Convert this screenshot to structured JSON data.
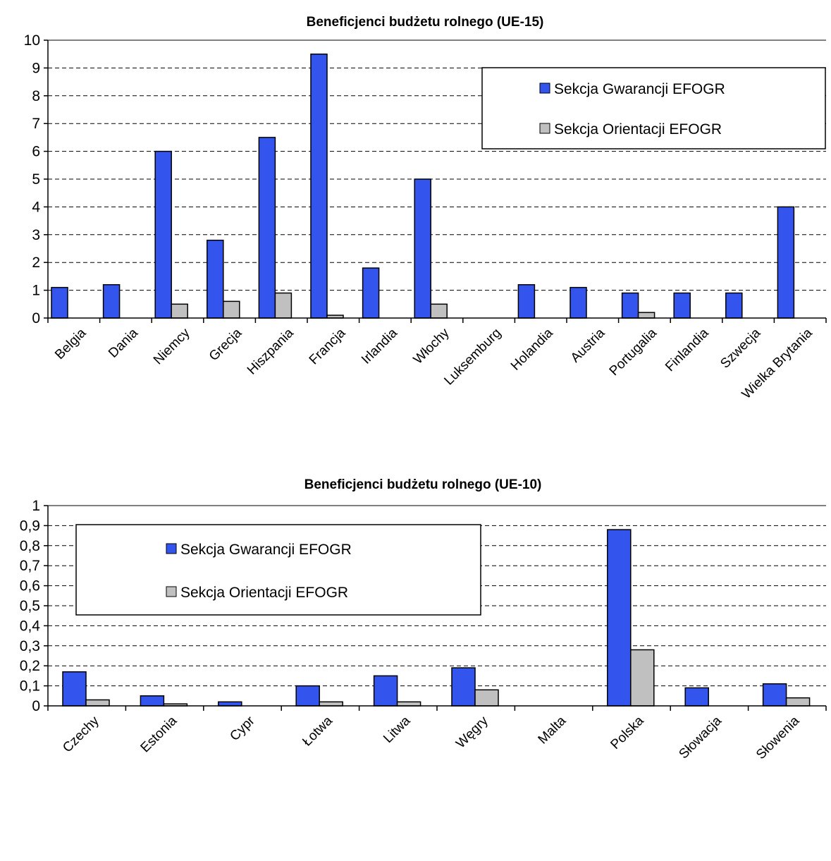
{
  "colors": {
    "guarantee": "#3355ee",
    "orientation": "#c0c0c0",
    "outline": "#000000",
    "grid": "#000000",
    "plot_border": "#808080"
  },
  "chart_data": [
    {
      "type": "bar",
      "title": "Beneficjenci budżetu rolnego (UE-15)",
      "categories": [
        "Belgia",
        "Dania",
        "Niemcy",
        "Grecja",
        "Hiszpania",
        "Francja",
        "Irlandia",
        "Włochy",
        "Luksemburg",
        "Holandia",
        "Austria",
        "Portugalia",
        "Finlandia",
        "Szwecja",
        "Wielka Brytania"
      ],
      "series": [
        {
          "name": "Sekcja Gwarancji EFOGR",
          "color_key": "guarantee",
          "values": [
            1.1,
            1.2,
            6.0,
            2.8,
            6.5,
            9.5,
            1.8,
            5.0,
            0,
            1.2,
            1.1,
            0.9,
            0.9,
            0.9,
            4.0
          ]
        },
        {
          "name": "Sekcja Orientacji EFOGR",
          "color_key": "orientation",
          "values": [
            0,
            0,
            0.5,
            0.6,
            0.9,
            0.1,
            0,
            0.5,
            0,
            0,
            0,
            0.2,
            0,
            0,
            0
          ]
        }
      ],
      "ylim": [
        0,
        10
      ],
      "yticks": [
        "0",
        "1",
        "2",
        "3",
        "4",
        "5",
        "6",
        "7",
        "8",
        "9",
        "10"
      ],
      "grid": true,
      "legend_position": "top-right"
    },
    {
      "type": "bar",
      "title": "Beneficjenci budżetu rolnego (UE-10)",
      "categories": [
        "Czechy",
        "Estonia",
        "Cypr",
        "Łotwa",
        "Litwa",
        "Węgry",
        "Malta",
        "Polska",
        "Słowacja",
        "Słowenia"
      ],
      "series": [
        {
          "name": "Sekcja Gwarancji EFOGR",
          "color_key": "guarantee",
          "values": [
            0.17,
            0.05,
            0.02,
            0.1,
            0.15,
            0.19,
            0,
            0.88,
            0.09,
            0.11
          ]
        },
        {
          "name": "Sekcja Orientacji EFOGR",
          "color_key": "orientation",
          "values": [
            0.03,
            0.01,
            0,
            0.02,
            0.02,
            0.08,
            0,
            0.28,
            0,
            0.04
          ]
        }
      ],
      "ylim": [
        0,
        1
      ],
      "yticks": [
        "0",
        "0,1",
        "0,2",
        "0,3",
        "0,4",
        "0,5",
        "0,6",
        "0,7",
        "0,8",
        "0,9",
        "1"
      ],
      "grid": true,
      "legend_position": "top-left"
    }
  ]
}
